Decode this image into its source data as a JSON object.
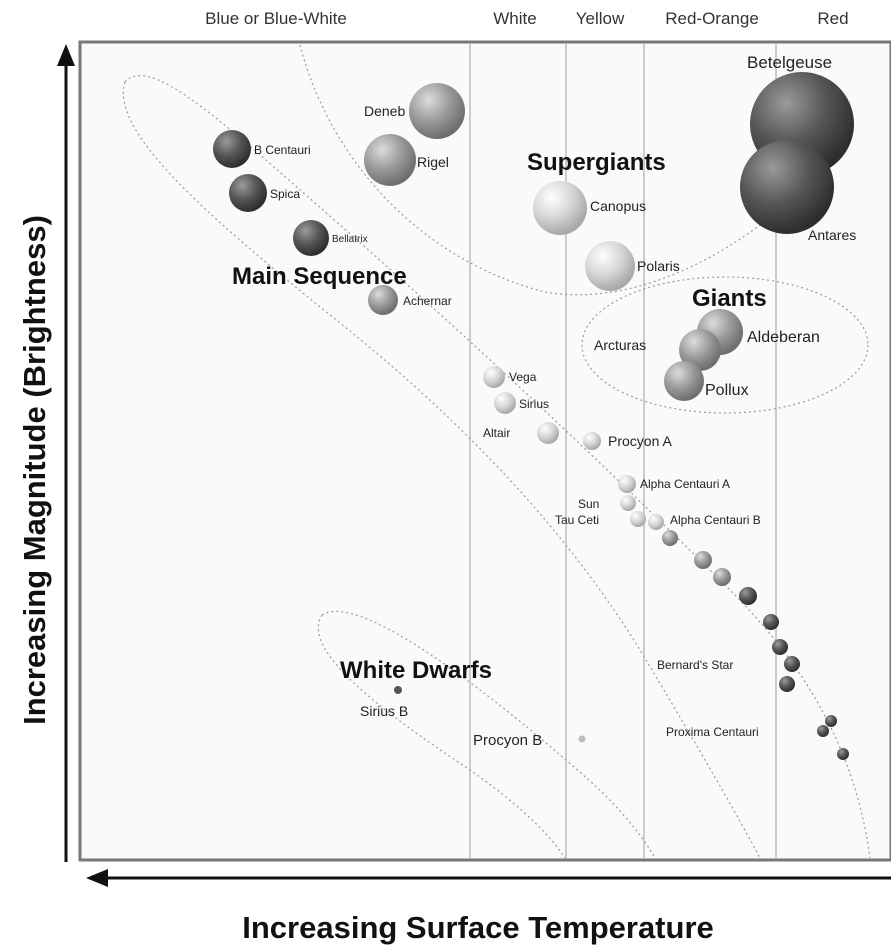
{
  "axes": {
    "x_label": "Increasing Surface Temperature",
    "y_label": "Increasing Magnitude (Brightness)"
  },
  "bands": [
    "Blue or Blue-White",
    "White",
    "Yellow",
    "Red-Orange",
    "Red"
  ],
  "regions": {
    "main_sequence": "Main Sequence",
    "supergiants": "Supergiants",
    "giants": "Giants",
    "white_dwarfs": "White Dwarfs"
  },
  "stars": [
    {
      "id": "betelgeuse",
      "label": "Betelgeuse",
      "color": "#555555"
    },
    {
      "id": "antares",
      "label": "Antares",
      "color": "#505050"
    },
    {
      "id": "deneb",
      "label": "Deneb",
      "color": "#b8b8b8"
    },
    {
      "id": "rigel",
      "label": "Rigel",
      "color": "#bbbbbb"
    },
    {
      "id": "b-centauri",
      "label": "B Centauri",
      "color": "#505050"
    },
    {
      "id": "spica",
      "label": "Spica",
      "color": "#555555"
    },
    {
      "id": "bellatrix",
      "label": "Bellatrix",
      "color": "#5a5a5a"
    },
    {
      "id": "achernar",
      "label": "Achernar",
      "color": "#8a8a8a"
    },
    {
      "id": "canopus",
      "label": "Canopus",
      "color": "#e2e2e2"
    },
    {
      "id": "polaris",
      "label": "Polaris",
      "color": "#d8d8d8"
    },
    {
      "id": "aldebaran",
      "label": "Aldeberan",
      "color": "#aaaaaa"
    },
    {
      "id": "arcturus",
      "label": "Arcturas",
      "color": "#a5a5a5"
    },
    {
      "id": "pollux",
      "label": "Pollux",
      "color": "#9a9a9a"
    },
    {
      "id": "vega",
      "label": "Vega",
      "color": "#d0d0d0"
    },
    {
      "id": "sirius",
      "label": "Sirius",
      "color": "#d0d0d0"
    },
    {
      "id": "altair",
      "label": "Altair",
      "color": "#d5d5d5"
    },
    {
      "id": "procyon-a",
      "label": "Procyon A",
      "color": "#e0e0e0"
    },
    {
      "id": "alpha-centauri-a",
      "label": "Alpha Centauri A",
      "color": "#e0e0e0"
    },
    {
      "id": "sun",
      "label": "Sun",
      "color": "#e5e5e5"
    },
    {
      "id": "tau-ceti",
      "label": "Tau Ceti",
      "color": "#d5d5d5"
    },
    {
      "id": "alpha-centauri-b",
      "label": "Alpha Centauri B",
      "color": "#cfcfcf"
    },
    {
      "id": "barnards-star",
      "label": "Bernard's Star",
      "color": "#6a6a6a"
    },
    {
      "id": "proxima-centauri",
      "label": "Proxima Centauri",
      "color": "#555555"
    },
    {
      "id": "sirius-b",
      "label": "Sirius B",
      "color": "#555555"
    },
    {
      "id": "procyon-b",
      "label": "Procyon B",
      "color": "#bbbbbb"
    }
  ]
}
